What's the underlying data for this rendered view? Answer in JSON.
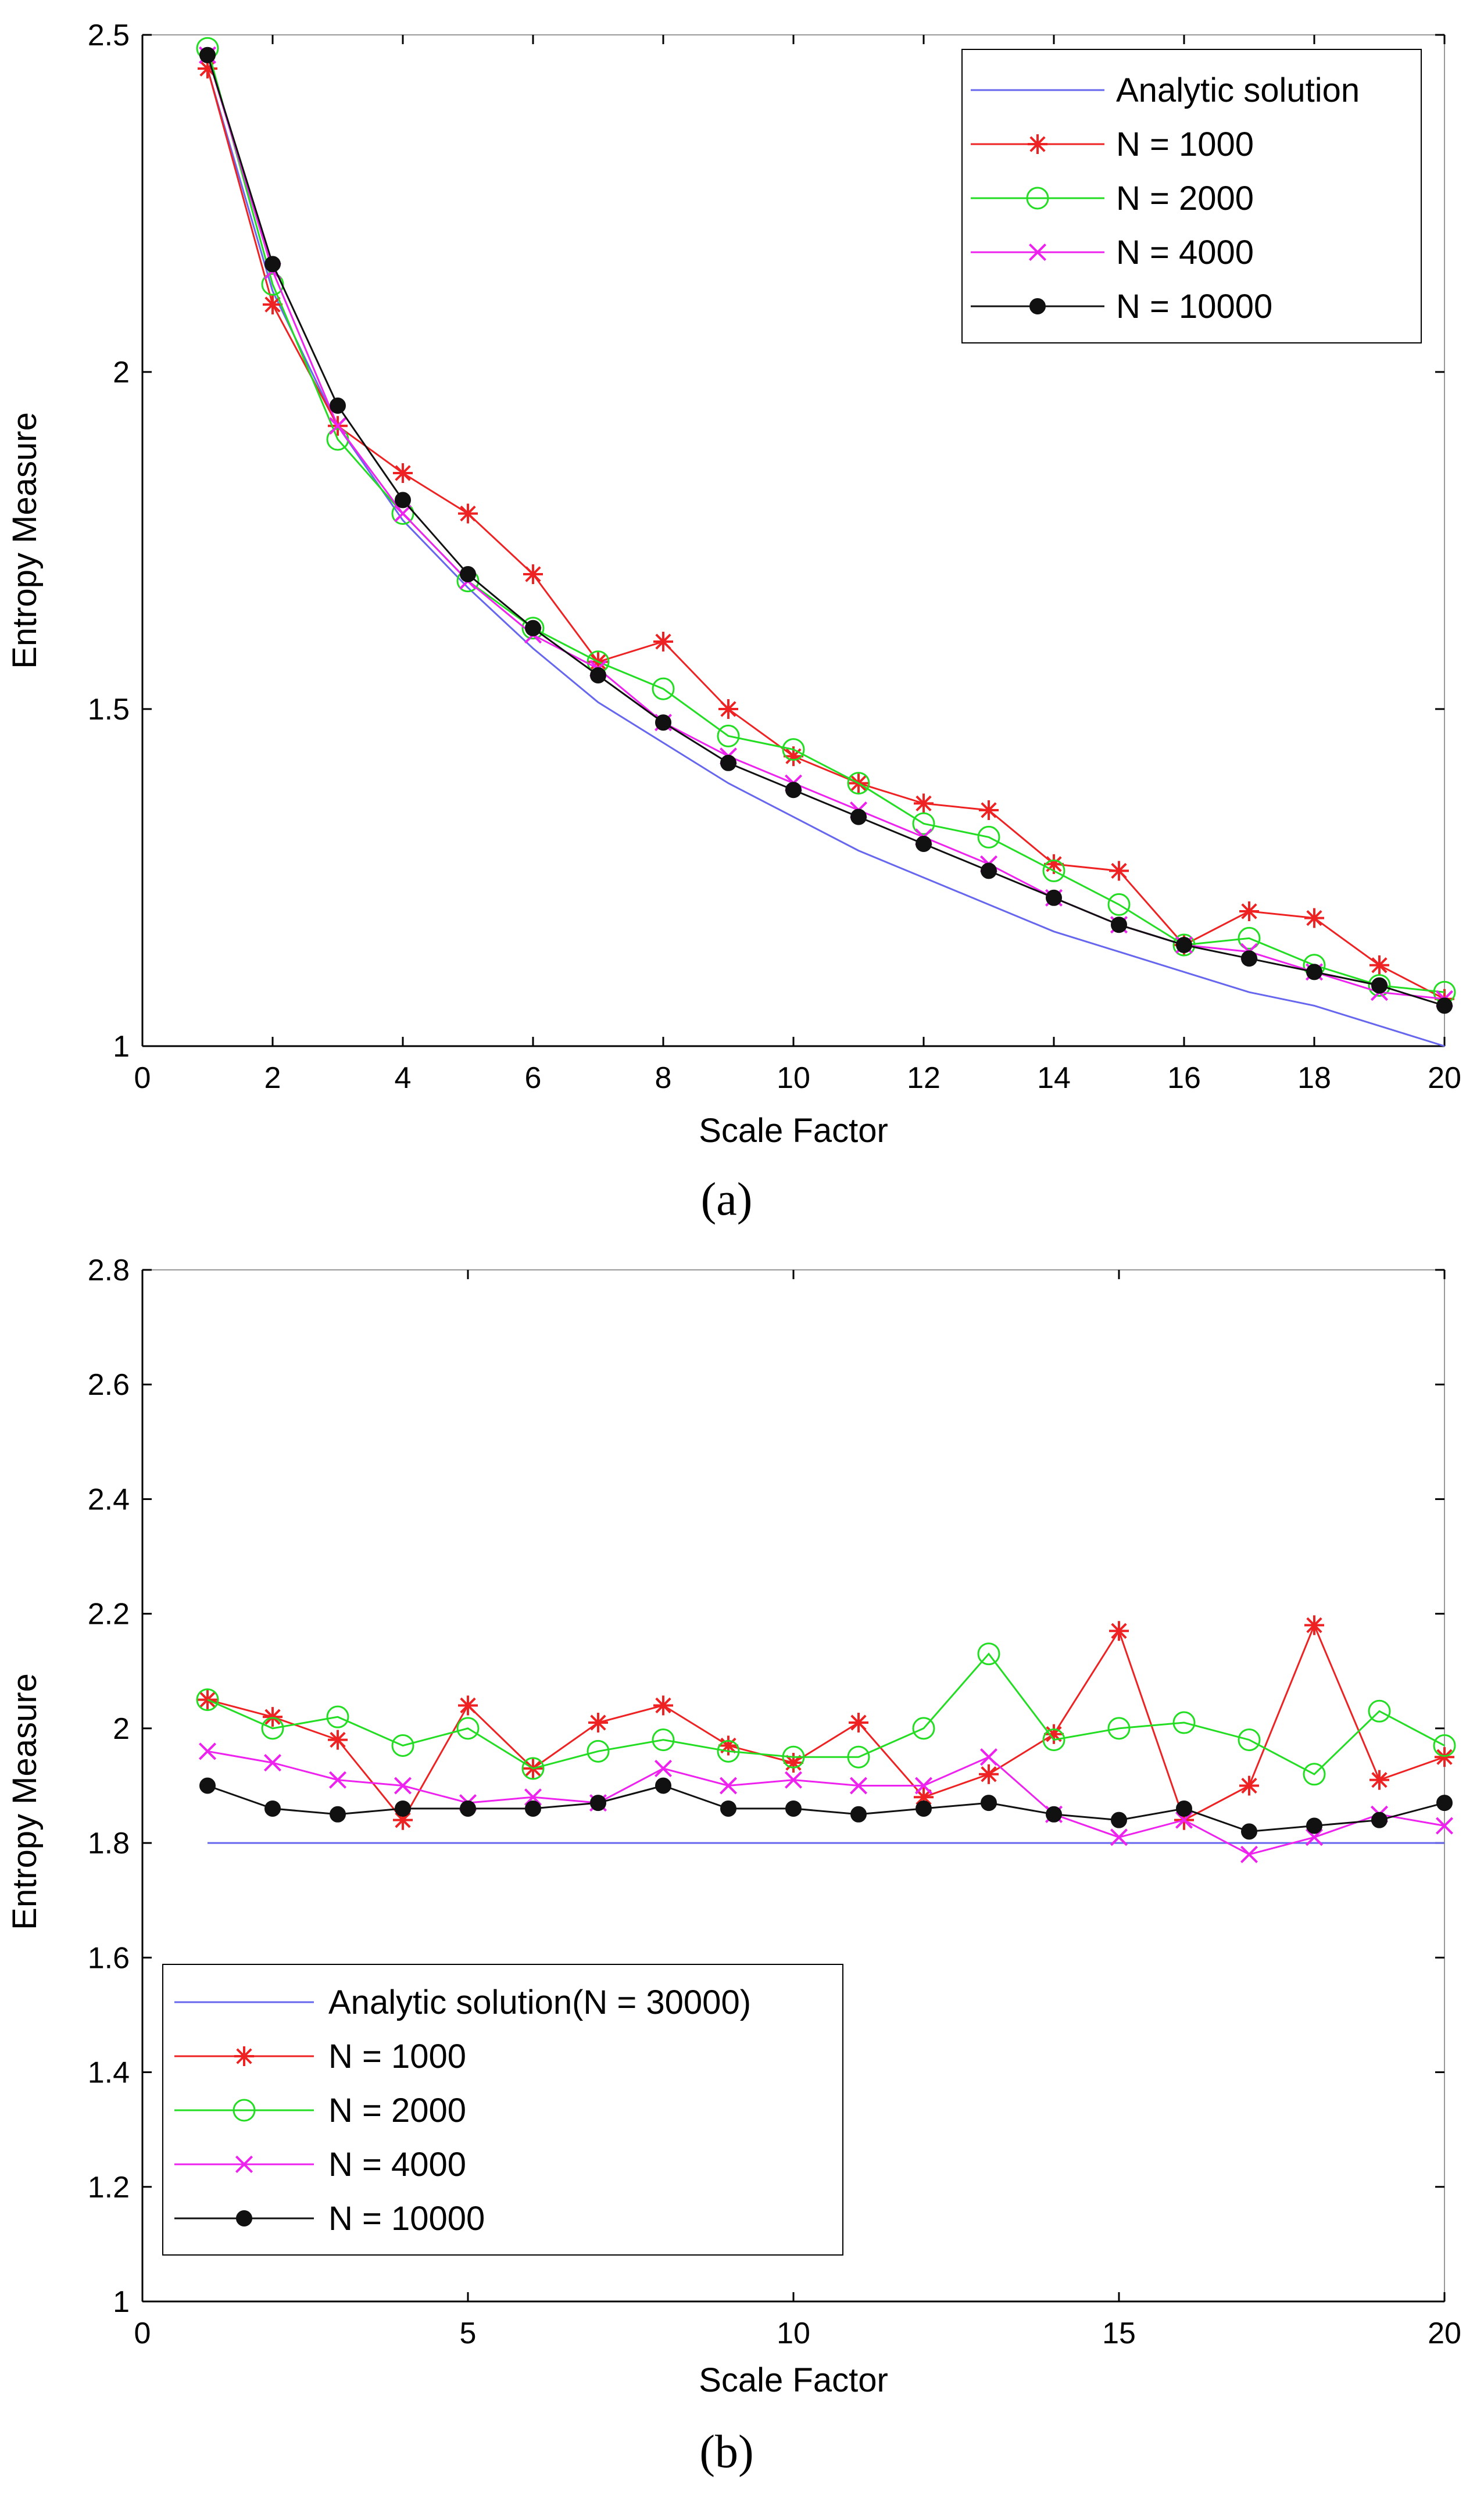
{
  "chart_data": [
    {
      "panel": "a",
      "type": "line",
      "caption": "(a)",
      "xlabel": "Scale Factor",
      "ylabel": "Entropy Measure",
      "xlim": [
        0,
        20
      ],
      "ylim": [
        1,
        2.5
      ],
      "xticks": [
        0,
        2,
        4,
        6,
        8,
        10,
        12,
        14,
        16,
        18,
        20
      ],
      "yticks": [
        1,
        1.5,
        2,
        2.5
      ],
      "xtick_labels": [
        "0",
        "2",
        "4",
        "6",
        "8",
        "10",
        "12",
        "14",
        "16",
        "18",
        "20"
      ],
      "ytick_labels": [
        "1",
        "1.5",
        "2",
        "2.5"
      ],
      "legend_position": "top-right",
      "x": [
        1,
        2,
        3,
        4,
        5,
        6,
        7,
        8,
        9,
        10,
        11,
        12,
        13,
        14,
        15,
        16,
        17,
        18,
        19,
        20
      ],
      "series": [
        {
          "name": "Analytic solution",
          "color": "#6666ee",
          "marker": "none",
          "values": [
            2.45,
            2.12,
            1.92,
            1.78,
            1.68,
            1.59,
            1.51,
            1.45,
            1.39,
            1.34,
            1.29,
            1.25,
            1.21,
            1.17,
            1.14,
            1.11,
            1.08,
            1.06,
            1.03,
            1.0
          ]
        },
        {
          "name": "N = 1000",
          "color": "#ee2222",
          "marker": "star",
          "values": [
            2.45,
            2.1,
            1.92,
            1.85,
            1.79,
            1.7,
            1.57,
            1.6,
            1.5,
            1.43,
            1.39,
            1.36,
            1.35,
            1.27,
            1.26,
            1.15,
            1.2,
            1.19,
            1.12,
            1.07
          ]
        },
        {
          "name": "N = 2000",
          "color": "#22dd22",
          "marker": "circle",
          "values": [
            2.48,
            2.13,
            1.9,
            1.79,
            1.69,
            1.62,
            1.57,
            1.53,
            1.46,
            1.44,
            1.39,
            1.33,
            1.31,
            1.26,
            1.21,
            1.15,
            1.16,
            1.12,
            1.09,
            1.08
          ]
        },
        {
          "name": "N = 4000",
          "color": "#ee22ee",
          "marker": "x",
          "values": [
            2.47,
            2.15,
            1.92,
            1.79,
            1.69,
            1.61,
            1.56,
            1.48,
            1.43,
            1.39,
            1.35,
            1.31,
            1.27,
            1.22,
            1.18,
            1.15,
            1.14,
            1.11,
            1.08,
            1.07
          ]
        },
        {
          "name": "N = 10000",
          "color": "#111111",
          "marker": "dot",
          "values": [
            2.47,
            2.16,
            1.95,
            1.81,
            1.7,
            1.62,
            1.55,
            1.48,
            1.42,
            1.38,
            1.34,
            1.3,
            1.26,
            1.22,
            1.18,
            1.15,
            1.13,
            1.11,
            1.09,
            1.06
          ]
        }
      ]
    },
    {
      "panel": "b",
      "type": "line",
      "caption": "(b)",
      "xlabel": "Scale Factor",
      "ylabel": "Entropy Measure",
      "xlim": [
        0,
        20
      ],
      "ylim": [
        1,
        2.8
      ],
      "xticks": [
        0,
        5,
        10,
        15,
        20
      ],
      "yticks": [
        1,
        1.2,
        1.4,
        1.6,
        1.8,
        2,
        2.2,
        2.4,
        2.6,
        2.8
      ],
      "xtick_labels": [
        "0",
        "5",
        "10",
        "15",
        "20"
      ],
      "ytick_labels": [
        "1",
        "1.2",
        "1.4",
        "1.6",
        "1.8",
        "2",
        "2.2",
        "2.4",
        "2.6",
        "2.8"
      ],
      "legend_position": "bottom-left",
      "x": [
        1,
        2,
        3,
        4,
        5,
        6,
        7,
        8,
        9,
        10,
        11,
        12,
        13,
        14,
        15,
        16,
        17,
        18,
        19,
        20
      ],
      "series": [
        {
          "name": "Analytic solution(N = 30000)",
          "color": "#6666ee",
          "marker": "none",
          "values": [
            1.8,
            1.8,
            1.8,
            1.8,
            1.8,
            1.8,
            1.8,
            1.8,
            1.8,
            1.8,
            1.8,
            1.8,
            1.8,
            1.8,
            1.8,
            1.8,
            1.8,
            1.8,
            1.8,
            1.8
          ]
        },
        {
          "name": "N = 1000",
          "color": "#ee2222",
          "marker": "star",
          "values": [
            2.05,
            2.02,
            1.98,
            1.84,
            2.04,
            1.93,
            2.01,
            2.04,
            1.97,
            1.94,
            2.01,
            1.88,
            1.92,
            1.99,
            2.17,
            1.84,
            1.9,
            2.18,
            1.91,
            1.95
          ]
        },
        {
          "name": "N = 2000",
          "color": "#22dd22",
          "marker": "circle",
          "values": [
            2.05,
            2.0,
            2.02,
            1.97,
            2.0,
            1.93,
            1.96,
            1.98,
            1.96,
            1.95,
            1.95,
            2.0,
            2.13,
            1.98,
            2.0,
            2.01,
            1.98,
            1.92,
            2.03,
            1.97
          ]
        },
        {
          "name": "N = 4000",
          "color": "#ee22ee",
          "marker": "x",
          "values": [
            1.96,
            1.94,
            1.91,
            1.9,
            1.87,
            1.88,
            1.87,
            1.93,
            1.9,
            1.91,
            1.9,
            1.9,
            1.95,
            1.85,
            1.81,
            1.84,
            1.78,
            1.81,
            1.85,
            1.83
          ]
        },
        {
          "name": "N = 10000",
          "color": "#111111",
          "marker": "dot",
          "values": [
            1.9,
            1.86,
            1.85,
            1.86,
            1.86,
            1.86,
            1.87,
            1.9,
            1.86,
            1.86,
            1.85,
            1.86,
            1.87,
            1.85,
            1.84,
            1.86,
            1.82,
            1.83,
            1.84,
            1.87
          ]
        }
      ]
    }
  ]
}
